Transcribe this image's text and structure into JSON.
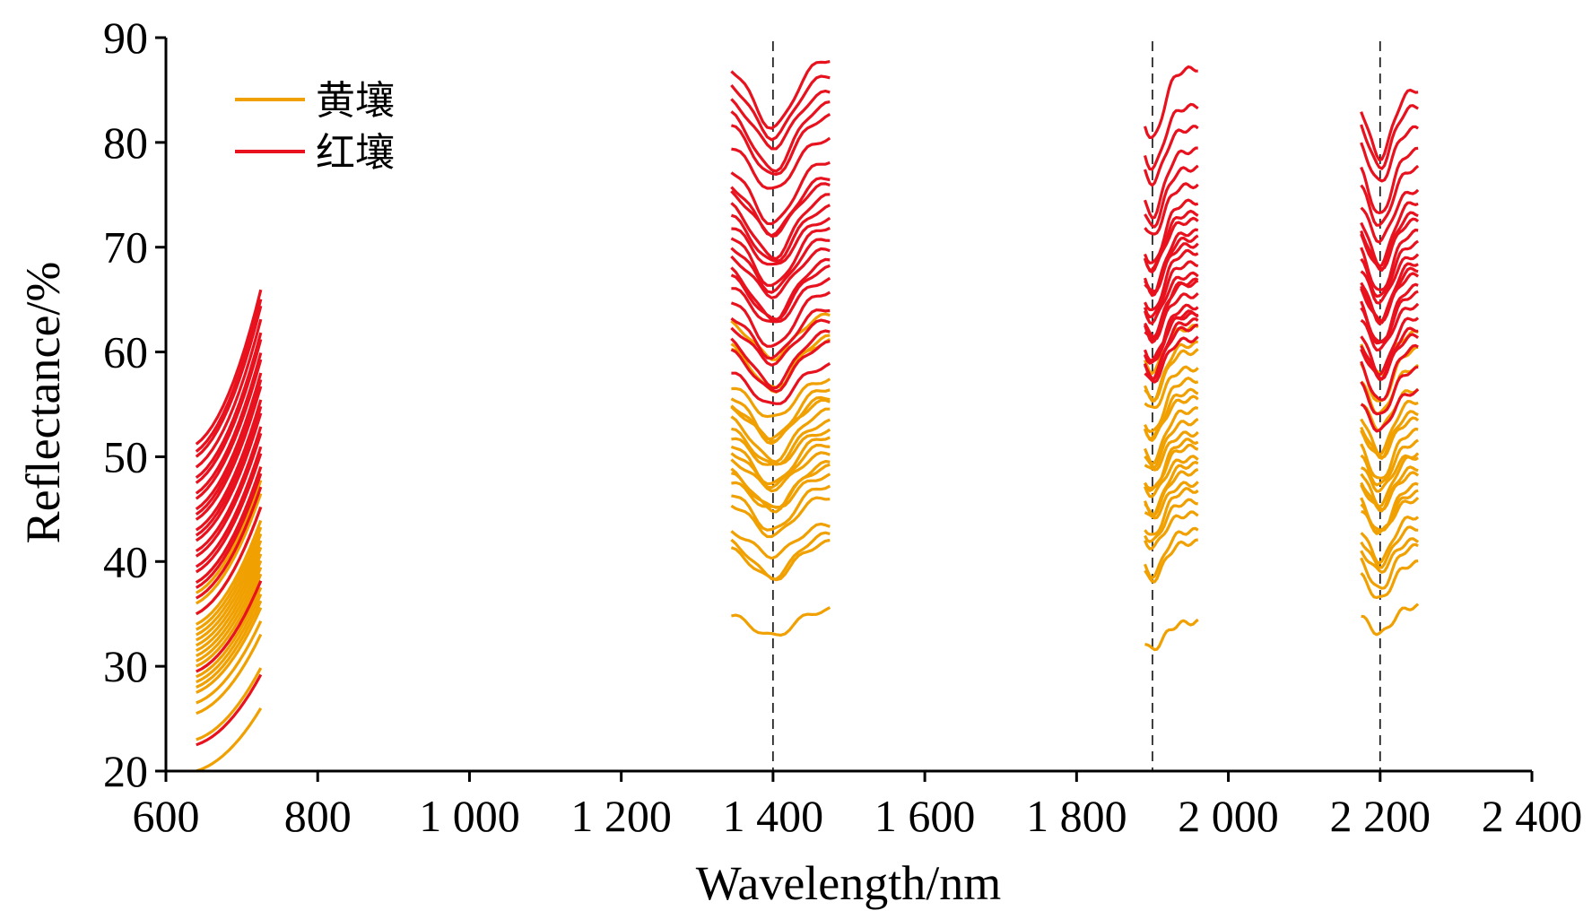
{
  "chart_data": {
    "type": "line",
    "xlabel": "Wavelength/nm",
    "ylabel": "Reflectance/%",
    "xlim": [
      600,
      2400
    ],
    "ylim": [
      20,
      90
    ],
    "xticks": [
      600,
      800,
      1000,
      1200,
      1400,
      1600,
      1800,
      2000,
      2200,
      2400
    ],
    "xtick_labels": [
      "600",
      "800",
      "1 000",
      "1 200",
      "1 400",
      "1 600",
      "1 800",
      "2 000",
      "2 200",
      "2 400"
    ],
    "yticks": [
      20,
      30,
      40,
      50,
      60,
      70,
      80,
      90
    ],
    "ytick_labels": [
      "20",
      "30",
      "40",
      "50",
      "60",
      "70",
      "80",
      "90"
    ],
    "grid": false,
    "legend_position": "top-left",
    "reference_lines": [
      1400,
      1900,
      2200
    ],
    "series": [
      {
        "name": "黄壤",
        "color": "#F0A000",
        "band_ranges": [
          [
            640,
            725
          ],
          [
            1345,
            1475
          ],
          [
            1890,
            1960
          ],
          [
            2175,
            2250
          ]
        ],
        "start_values": [
          20,
          23,
          25.5,
          26.5,
          27.5,
          28,
          28.5,
          29,
          29.5,
          30,
          30.5,
          31,
          31.5,
          32,
          32.5,
          33,
          33.5,
          34,
          35,
          36,
          37,
          38
        ],
        "band_levels": [
          [
            35.2,
            41.5,
            42.2,
            43,
            46,
            47,
            47.8,
            48.5,
            49.2,
            50,
            50.8,
            51.5,
            52.3,
            53,
            54,
            54.8,
            55.5,
            56.3,
            57,
            60.5,
            61.2,
            63.2
          ],
          [
            34,
            41.5,
            42.5,
            44,
            45.5,
            46.5,
            47,
            48,
            49,
            49.5,
            50.5,
            51,
            52,
            53,
            54,
            55,
            56,
            57,
            58,
            59.5,
            60.5,
            62
          ],
          [
            35.5,
            39.5,
            41,
            41.5,
            43,
            44,
            45.5,
            46,
            47,
            48,
            48.5,
            49.5,
            50,
            51,
            52,
            53,
            54,
            55,
            56,
            58,
            60,
            61.5
          ]
        ]
      },
      {
        "name": "红壤",
        "color": "#E8121E",
        "band_ranges": [
          [
            640,
            725
          ],
          [
            1345,
            1475
          ],
          [
            1890,
            1960
          ],
          [
            2175,
            2250
          ]
        ],
        "start_values": [
          22.5,
          29.5,
          35,
          36.5,
          37.5,
          38,
          39,
          39.5,
          40.5,
          41,
          42,
          42.5,
          43,
          44,
          44.5,
          45,
          46,
          46.5,
          47.5,
          48,
          49,
          50,
          50.5,
          51.2
        ],
        "band_levels": [
          [
            58.5,
            60.5,
            61.5,
            62.5,
            64,
            65.5,
            66.5,
            67.5,
            68.5,
            69.5,
            70.5,
            71.5,
            72.5,
            73.5,
            74.5,
            75.5,
            76.5,
            78,
            80,
            82,
            83.5,
            84.5,
            86,
            87.5
          ],
          [
            61,
            62,
            62.5,
            63,
            63.5,
            64,
            65,
            66,
            66.5,
            67,
            68,
            69,
            70,
            70.5,
            71,
            72,
            73,
            74,
            75.5,
            77,
            79,
            81,
            83,
            86.5
          ],
          [
            56,
            58,
            60,
            61,
            62,
            63,
            64,
            65,
            66,
            67,
            67.5,
            68,
            69,
            70,
            71,
            72,
            73,
            74,
            75,
            77,
            79,
            81,
            83,
            84.5
          ]
        ]
      }
    ]
  }
}
